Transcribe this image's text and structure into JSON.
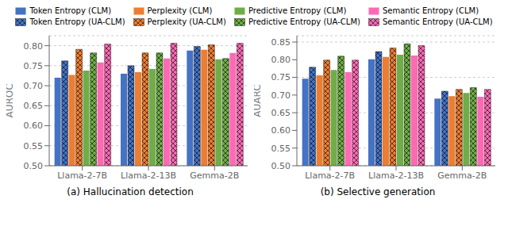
{
  "chart_data": [
    {
      "type": "bar",
      "title": "(a) Hallucination detection",
      "ylabel": "AUROC",
      "categories": [
        "Llama-2-7B",
        "Llama-2-13B",
        "Gemma-2B"
      ],
      "series": [
        {
          "name": "Token Entropy (CLM)",
          "color": "#4472c4",
          "values": [
            0.72,
            0.73,
            0.788
          ]
        },
        {
          "name": "Token Entropy (UA-CLM)",
          "color": "#4472c4",
          "values": [
            0.762,
            0.75,
            0.798
          ]
        },
        {
          "name": "Perplexity (CLM)",
          "color": "#ed7d31",
          "values": [
            0.727,
            0.734,
            0.79
          ]
        },
        {
          "name": "Perplexity (UA-CLM)",
          "color": "#ed7d31",
          "values": [
            0.791,
            0.782,
            0.802
          ]
        },
        {
          "name": "Predictive Entropy (CLM)",
          "color": "#70ad47",
          "values": [
            0.738,
            0.742,
            0.766
          ]
        },
        {
          "name": "Predictive Entropy (UA-CLM)",
          "color": "#70ad47",
          "values": [
            0.782,
            0.782,
            0.768
          ]
        },
        {
          "name": "Semantic Entropy (CLM)",
          "color": "#ff69b4",
          "values": [
            0.758,
            0.768,
            0.782
          ]
        },
        {
          "name": "Semantic Entropy (UA-CLM)",
          "color": "#ff69b4",
          "values": [
            0.804,
            0.806,
            0.806
          ]
        }
      ],
      "ylim": [
        0.5,
        0.825
      ],
      "yticks": [
        {
          "value": 0.5,
          "label": "0.50"
        },
        0.55,
        {
          "value": 0.6,
          "label": "0.60"
        },
        0.65,
        {
          "value": 0.7,
          "label": "0.70"
        },
        0.75,
        {
          "value": 0.8,
          "label": "0.80"
        }
      ],
      "grid": true
    },
    {
      "type": "bar",
      "title": "(b) Selective generation",
      "ylabel": "AUARC",
      "categories": [
        "Llama-2-7B",
        "Llama-2-13B",
        "Gemma-2B"
      ],
      "series": [
        {
          "name": "Token Entropy (CLM)",
          "color": "#4472c4",
          "values": [
            0.746,
            0.801,
            0.69
          ]
        },
        {
          "name": "Token Entropy (UA-CLM)",
          "color": "#4472c4",
          "values": [
            0.779,
            0.823,
            0.711
          ]
        },
        {
          "name": "Perplexity (CLM)",
          "color": "#ed7d31",
          "values": [
            0.756,
            0.808,
            0.697
          ]
        },
        {
          "name": "Perplexity (UA-CLM)",
          "color": "#ed7d31",
          "values": [
            0.799,
            0.833,
            0.716
          ]
        },
        {
          "name": "Predictive Entropy (CLM)",
          "color": "#70ad47",
          "values": [
            0.771,
            0.814,
            0.706
          ]
        },
        {
          "name": "Predictive Entropy (UA-CLM)",
          "color": "#70ad47",
          "values": [
            0.81,
            0.845,
            0.721
          ]
        },
        {
          "name": "Semantic Entropy (CLM)",
          "color": "#ff69b4",
          "values": [
            0.765,
            0.812,
            0.695
          ]
        },
        {
          "name": "Semantic Entropy (UA-CLM)",
          "color": "#ff69b4",
          "values": [
            0.799,
            0.84,
            0.716
          ]
        }
      ],
      "ylim": [
        0.5,
        0.868
      ],
      "yticks": [
        {
          "value": 0.5,
          "label": "0.50"
        },
        0.55,
        {
          "value": 0.6,
          "label": "0.60"
        },
        0.65,
        {
          "value": 0.7,
          "label": "0.70"
        },
        0.75,
        {
          "value": 0.8,
          "label": "0.80"
        },
        0.85
      ],
      "grid": true
    }
  ]
}
